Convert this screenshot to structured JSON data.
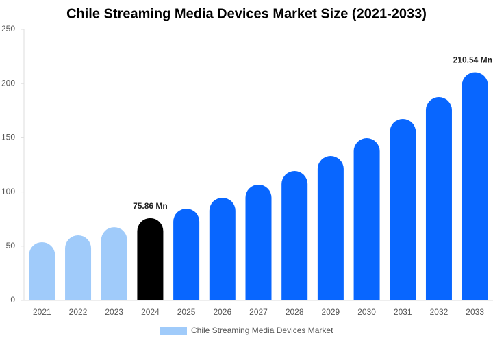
{
  "chart_data": {
    "type": "bar",
    "title": "Chile Streaming Media Devices Market Size (2021-2033)",
    "categories": [
      "2021",
      "2022",
      "2023",
      "2024",
      "2025",
      "2026",
      "2027",
      "2028",
      "2029",
      "2030",
      "2031",
      "2032",
      "2033"
    ],
    "series": [
      {
        "name": "Chile Streaming Media Devices Market",
        "color": "#a0cbfa",
        "values": [
          53.7,
          60,
          67.5,
          75.86,
          84.6,
          94.7,
          106.7,
          119.3,
          133.2,
          149.6,
          167.3,
          187.5,
          210.54
        ],
        "colors": [
          "#a0cbfa",
          "#a0cbfa",
          "#a0cbfa",
          "#000000",
          "#0866ff",
          "#0866ff",
          "#0866ff",
          "#0866ff",
          "#0866ff",
          "#0866ff",
          "#0866ff",
          "#0866ff",
          "#0866ff"
        ],
        "value_labels": [
          null,
          null,
          null,
          "75.86 Mn",
          null,
          null,
          null,
          null,
          null,
          null,
          null,
          null,
          "210.54 Mn"
        ]
      }
    ],
    "ylim": [
      0,
      250
    ],
    "yticks": [
      0,
      50,
      100,
      150,
      200,
      250
    ]
  }
}
